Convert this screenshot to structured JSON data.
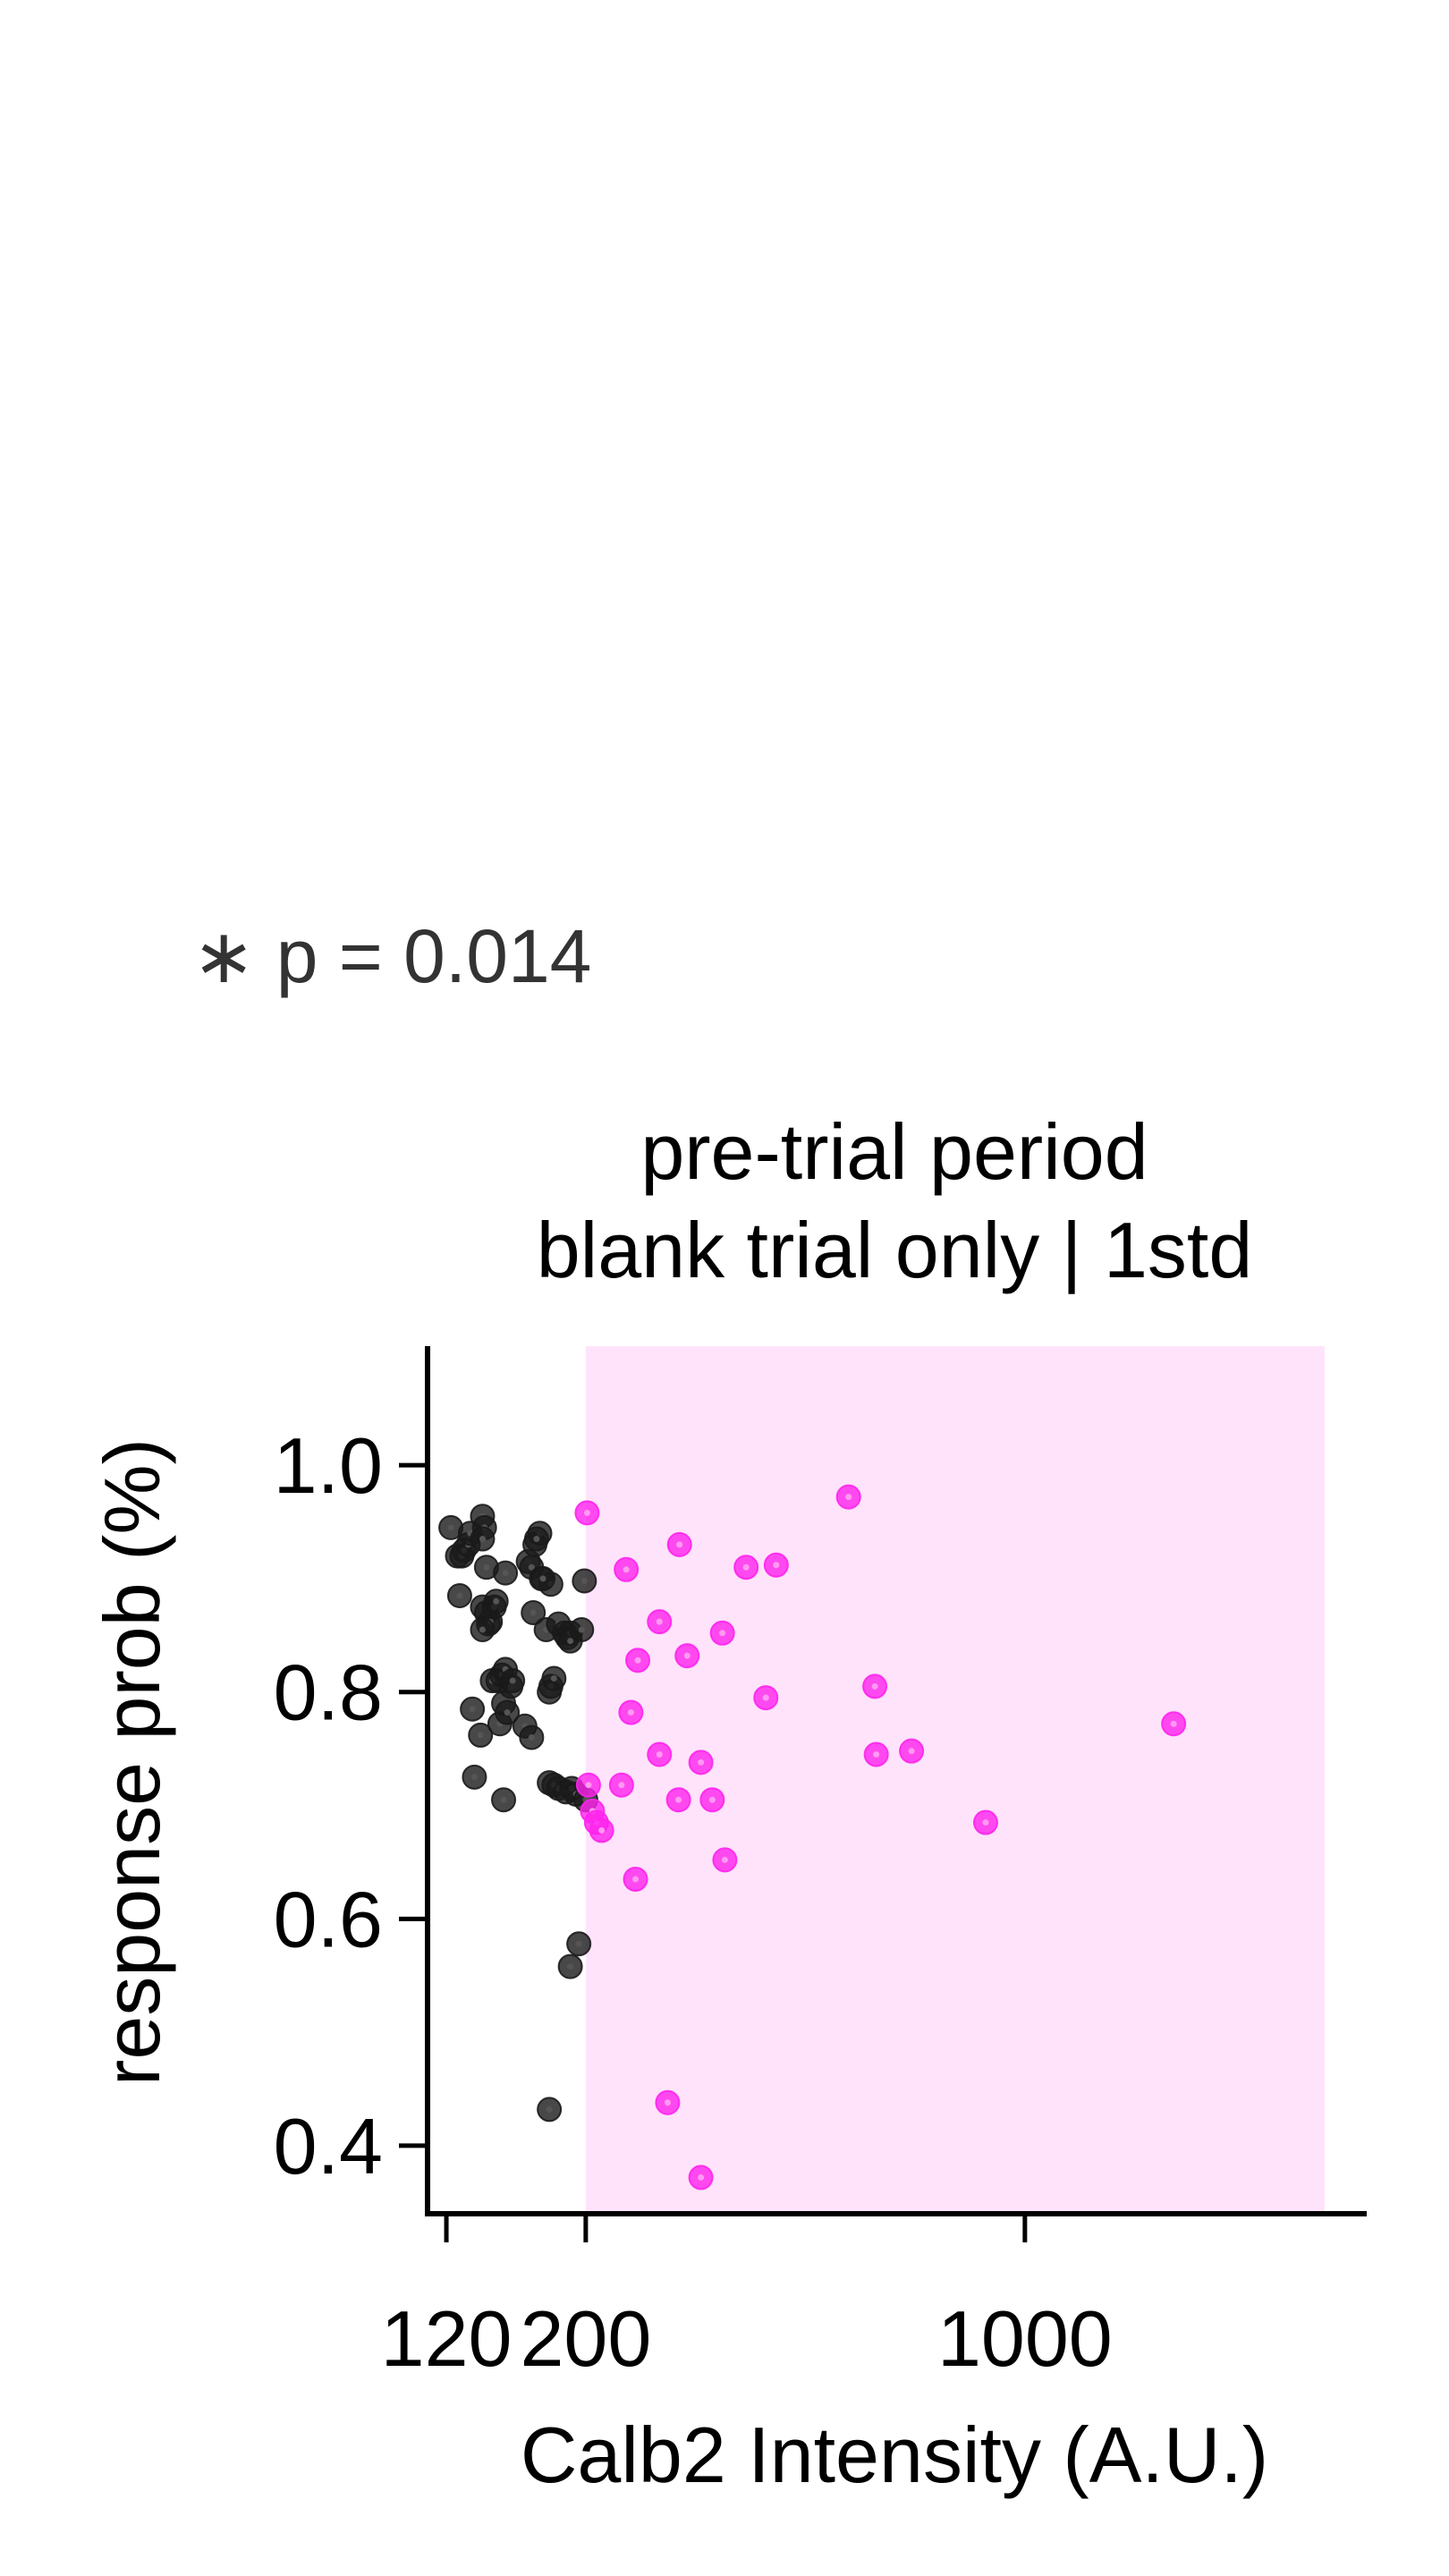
{
  "chart_data": {
    "type": "scatter",
    "annotation": "∗ p = 0.014",
    "title_lines": [
      "pre-trial period",
      "blank trial only | 1std"
    ],
    "xlabel": "Calb2 Intensity (A.U.)",
    "ylabel": "response prob (%)",
    "x_scale": "log",
    "xlim": [
      112,
      3500
    ],
    "ylim": [
      0.34,
      1.105
    ],
    "x_ticks": [
      120,
      200,
      1000
    ],
    "x_tick_labels": [
      "120",
      "200",
      "1000"
    ],
    "y_ticks": [
      0.4,
      0.6,
      0.8,
      1.0
    ],
    "y_tick_labels": [
      "0.4",
      "0.6",
      "0.8",
      "1.0"
    ],
    "shaded_region": {
      "x_range": [
        200,
        3000
      ],
      "color": "#ffe3fb"
    },
    "grid": false,
    "series": [
      {
        "color": "#1a1a1a",
        "points": [
          [
            122,
            0.945
          ],
          [
            125,
            0.92
          ],
          [
            127,
            0.92
          ],
          [
            128,
            0.925
          ],
          [
            130,
            0.93
          ],
          [
            131,
            0.94
          ],
          [
            126,
            0.885
          ],
          [
            137,
            0.955
          ],
          [
            138,
            0.945
          ],
          [
            137,
            0.935
          ],
          [
            139,
            0.91
          ],
          [
            140,
            0.86
          ],
          [
            137,
            0.875
          ],
          [
            139,
            0.87
          ],
          [
            141,
            0.862
          ],
          [
            143,
            0.875
          ],
          [
            144,
            0.88
          ],
          [
            137,
            0.855
          ],
          [
            149,
            0.905
          ],
          [
            162,
            0.915
          ],
          [
            164,
            0.91
          ],
          [
            166,
            0.93
          ],
          [
            169,
            0.94
          ],
          [
            167,
            0.935
          ],
          [
            165,
            0.87
          ],
          [
            170,
            0.9
          ],
          [
            173,
            0.855
          ],
          [
            176,
            0.895
          ],
          [
            171,
            0.9
          ],
          [
            145,
            0.81
          ],
          [
            142,
            0.81
          ],
          [
            147,
            0.815
          ],
          [
            149,
            0.82
          ],
          [
            152,
            0.805
          ],
          [
            153,
            0.81
          ],
          [
            148,
            0.79
          ],
          [
            146,
            0.772
          ],
          [
            150,
            0.782
          ],
          [
            160,
            0.77
          ],
          [
            164,
            0.76
          ],
          [
            132,
            0.785
          ],
          [
            136,
            0.762
          ],
          [
            133,
            0.725
          ],
          [
            148,
            0.705
          ],
          [
            175,
            0.8
          ],
          [
            176,
            0.805
          ],
          [
            178,
            0.812
          ],
          [
            181,
            0.86
          ],
          [
            185,
            0.852
          ],
          [
            187,
            0.848
          ],
          [
            189,
            0.852
          ],
          [
            189,
            0.845
          ],
          [
            197,
            0.855
          ],
          [
            199,
            0.898
          ],
          [
            175,
            0.72
          ],
          [
            178,
            0.718
          ],
          [
            181,
            0.715
          ],
          [
            186,
            0.712
          ],
          [
            190,
            0.715
          ],
          [
            193,
            0.71
          ],
          [
            200,
            0.705
          ],
          [
            195,
            0.578
          ],
          [
            189,
            0.558
          ],
          [
            175,
            0.432
          ]
        ]
      },
      {
        "color": "#ff22ee",
        "points": [
          [
            201,
            0.958
          ],
          [
            232,
            0.908
          ],
          [
            282,
            0.93
          ],
          [
            360,
            0.91
          ],
          [
            402,
            0.912
          ],
          [
            524,
            0.972
          ],
          [
            242,
            0.828
          ],
          [
            262,
            0.862
          ],
          [
            290,
            0.832
          ],
          [
            330,
            0.852
          ],
          [
            387,
            0.795
          ],
          [
            577,
            0.805
          ],
          [
            236,
            0.782
          ],
          [
            262,
            0.745
          ],
          [
            281,
            0.705
          ],
          [
            305,
            0.738
          ],
          [
            318,
            0.705
          ],
          [
            580,
            0.745
          ],
          [
            660,
            0.748
          ],
          [
            1725,
            0.772
          ],
          [
            202,
            0.718
          ],
          [
            205,
            0.695
          ],
          [
            208,
            0.685
          ],
          [
            212,
            0.678
          ],
          [
            228,
            0.718
          ],
          [
            240,
            0.635
          ],
          [
            333,
            0.652
          ],
          [
            866,
            0.685
          ],
          [
            270,
            0.438
          ],
          [
            305,
            0.372
          ]
        ]
      }
    ]
  }
}
